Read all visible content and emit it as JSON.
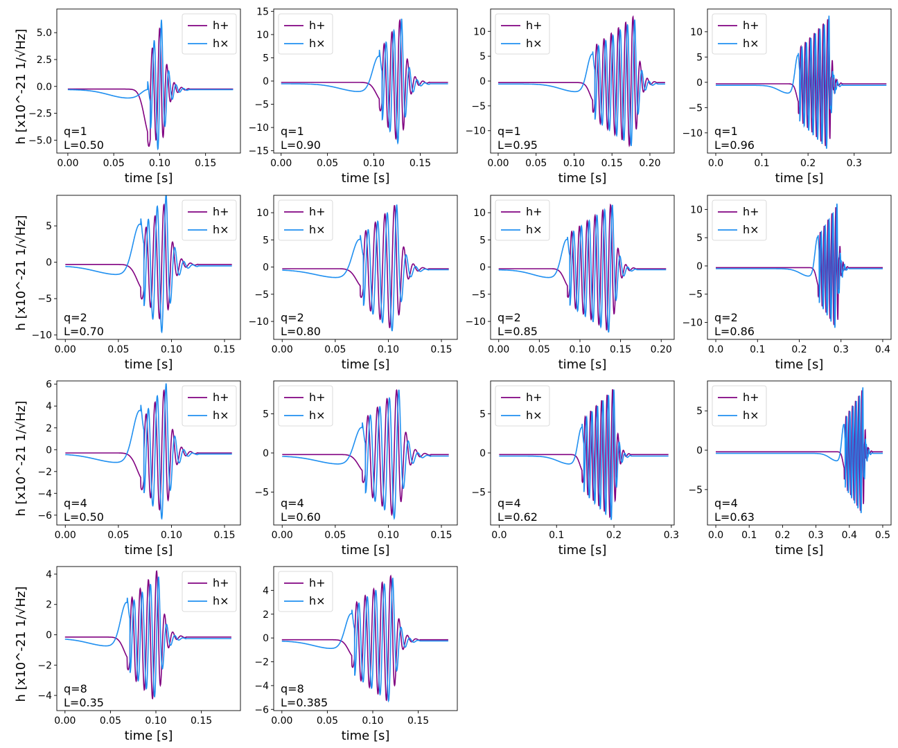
{
  "colors": {
    "h_plus": "#800080",
    "h_cross": "#1f8ff0"
  },
  "legend": {
    "plus": "h+",
    "cross": "h×",
    "placement": "top-left"
  },
  "x_label": "time [s]",
  "y_label": "h [x10^-21 1/√Hz]",
  "chart_data": [
    {
      "type": "line",
      "row": 0,
      "col": 0,
      "q_text": "q=1",
      "L_text": "L=0.50",
      "legend_loc": "top-right",
      "xlim": [
        -0.012,
        0.188
      ],
      "ylim": [
        -6.2,
        7.2
      ],
      "xticks": [
        0.0,
        0.05,
        0.1,
        0.15
      ],
      "xtick_labels": [
        "0.00",
        "0.05",
        "0.10",
        "0.15"
      ],
      "yticks": [
        -5.0,
        -2.5,
        0.0,
        2.5,
        5.0
      ],
      "ytick_labels": [
        "−5.0",
        "−2.5",
        "0.0",
        "2.5",
        "5.0"
      ],
      "t_end": 0.18,
      "t_merger": 0.102,
      "n_cycles": 1,
      "amp_plus": 6.1,
      "amp_cross": 6.5,
      "amp_lobe_plus": 4.5,
      "amp_lobe_cross": 0.5,
      "lobe_shift": 0.0,
      "offset_plus": -0.25,
      "offset_cross": -0.3,
      "spike": false
    },
    {
      "type": "line",
      "row": 0,
      "col": 1,
      "q_text": "q=1",
      "L_text": "L=0.90",
      "legend_loc": "top-left",
      "xlim": [
        -0.008,
        0.19
      ],
      "ylim": [
        -15.5,
        15.5
      ],
      "xticks": [
        0.0,
        0.05,
        0.1,
        0.15
      ],
      "xtick_labels": [
        "0.00",
        "0.05",
        "0.10",
        "0.15"
      ],
      "yticks": [
        -15,
        -10,
        -5,
        0,
        5,
        10,
        15
      ],
      "ytick_labels": [
        "−15",
        "−10",
        "−5",
        "0",
        "5",
        "10",
        "15"
      ],
      "t_end": 0.18,
      "t_merger": 0.13,
      "n_cycles": 2,
      "amp_plus": 14,
      "amp_cross": 14,
      "amp_lobe_plus": 4,
      "amp_lobe_cross": 7,
      "lobe_shift": 0.0,
      "offset_plus": -0.3,
      "offset_cross": -0.6,
      "spike": false
    },
    {
      "type": "line",
      "row": 0,
      "col": 2,
      "q_text": "q=1",
      "L_text": "L=0.95",
      "legend_loc": "top-left",
      "xlim": [
        -0.01,
        0.232
      ],
      "ylim": [
        -14.5,
        14.5
      ],
      "xticks": [
        0.0,
        0.05,
        0.1,
        0.15,
        0.2
      ],
      "xtick_labels": [
        "0.00",
        "0.05",
        "0.10",
        "0.15",
        "0.20"
      ],
      "yticks": [
        -10,
        -5,
        0,
        5,
        10
      ],
      "ytick_labels": [
        "−10",
        "−5",
        "0",
        "5",
        "10"
      ],
      "t_end": 0.22,
      "t_merger": 0.18,
      "n_cycles": 5,
      "amp_plus": 13.5,
      "amp_cross": 13,
      "amp_lobe_plus": 4,
      "amp_lobe_cross": 7,
      "lobe_shift": 0.0,
      "offset_plus": -0.3,
      "offset_cross": -0.6,
      "spike": false
    },
    {
      "type": "line",
      "row": 0,
      "col": 3,
      "q_text": "q=1",
      "L_text": "L=0.96",
      "legend_loc": "top-left",
      "xlim": [
        -0.018,
        0.38
      ],
      "ylim": [
        -14,
        14.5
      ],
      "xticks": [
        0.0,
        0.1,
        0.2,
        0.3
      ],
      "xtick_labels": [
        "0.0",
        "0.1",
        "0.2",
        "0.3"
      ],
      "yticks": [
        -10,
        -5,
        0,
        5,
        10
      ],
      "ytick_labels": [
        "−10",
        "−5",
        "0",
        "5",
        "10"
      ],
      "t_end": 0.37,
      "t_merger": 0.245,
      "n_cycles": 6,
      "amp_plus": 13,
      "amp_cross": 13,
      "amp_lobe_plus": 4,
      "amp_lobe_cross": 7,
      "lobe_shift": 0.0,
      "offset_plus": -0.3,
      "offset_cross": -0.6,
      "spike": true
    },
    {
      "type": "line",
      "row": 1,
      "col": 0,
      "q_text": "q=2",
      "L_text": "L=0.70",
      "legend_loc": "top-right",
      "xlim": [
        -0.008,
        0.165
      ],
      "ylim": [
        -10.6,
        9.2
      ],
      "xticks": [
        0.0,
        0.05,
        0.1,
        0.15
      ],
      "xtick_labels": [
        "0.00",
        "0.05",
        "0.10",
        "0.15"
      ],
      "yticks": [
        -10,
        -5,
        0,
        5
      ],
      "ytick_labels": [
        "−10",
        "−5",
        "0",
        "5"
      ],
      "t_end": 0.157,
      "t_merger": 0.095,
      "n_cycles": 2,
      "amp_plus": 8.6,
      "amp_cross": 10,
      "amp_lobe_plus": 3.5,
      "amp_lobe_cross": 6.5,
      "lobe_shift": 0.0,
      "offset_plus": -0.3,
      "offset_cross": -0.5,
      "spike": false
    },
    {
      "type": "line",
      "row": 1,
      "col": 1,
      "q_text": "q=2",
      "L_text": "L=0.80",
      "legend_loc": "top-left",
      "xlim": [
        -0.008,
        0.165
      ],
      "ylim": [
        -13.3,
        13.2
      ],
      "xticks": [
        0.0,
        0.05,
        0.1,
        0.15
      ],
      "xtick_labels": [
        "0.00",
        "0.05",
        "0.10",
        "0.15"
      ],
      "yticks": [
        -10,
        -5,
        0,
        5,
        10
      ],
      "ytick_labels": [
        "−10",
        "−5",
        "0",
        "5",
        "10"
      ],
      "t_end": 0.157,
      "t_merger": 0.108,
      "n_cycles": 3,
      "amp_plus": 12,
      "amp_cross": 12,
      "amp_lobe_plus": 3.5,
      "amp_lobe_cross": 6.5,
      "lobe_shift": 0.0,
      "offset_plus": -0.3,
      "offset_cross": -0.5,
      "spike": false
    },
    {
      "type": "line",
      "row": 1,
      "col": 2,
      "q_text": "q=2",
      "L_text": "L=0.85",
      "legend_loc": "top-left",
      "xlim": [
        -0.01,
        0.216
      ],
      "ylim": [
        -13.3,
        13.2
      ],
      "xticks": [
        0.0,
        0.05,
        0.1,
        0.15,
        0.2
      ],
      "xtick_labels": [
        "0.00",
        "0.05",
        "0.10",
        "0.15",
        "0.20"
      ],
      "yticks": [
        -10,
        -5,
        0,
        5,
        10
      ],
      "ytick_labels": [
        "−10",
        "−5",
        "0",
        "5",
        "10"
      ],
      "t_end": 0.206,
      "t_merger": 0.14,
      "n_cycles": 5,
      "amp_plus": 12,
      "amp_cross": 12,
      "amp_lobe_plus": 3.5,
      "amp_lobe_cross": 6.5,
      "lobe_shift": 0.0,
      "offset_plus": -0.3,
      "offset_cross": -0.5,
      "spike": false
    },
    {
      "type": "line",
      "row": 1,
      "col": 3,
      "q_text": "q=2",
      "L_text": "L=0.86",
      "legend_loc": "top-left",
      "xlim": [
        -0.02,
        0.42
      ],
      "ylim": [
        -13,
        12.5
      ],
      "xticks": [
        0.0,
        0.1,
        0.2,
        0.3,
        0.4
      ],
      "xtick_labels": [
        "0.0",
        "0.1",
        "0.2",
        "0.3",
        "0.4"
      ],
      "yticks": [
        -10,
        -5,
        0,
        5,
        10
      ],
      "ytick_labels": [
        "−10",
        "−5",
        "0",
        "5",
        "10"
      ],
      "t_end": 0.4,
      "t_merger": 0.29,
      "n_cycles": 4,
      "amp_plus": 11,
      "amp_cross": 11,
      "amp_lobe_plus": 3.5,
      "amp_lobe_cross": 6.5,
      "lobe_shift": 0.0,
      "offset_plus": -0.3,
      "offset_cross": -0.5,
      "spike": true
    },
    {
      "type": "line",
      "row": 2,
      "col": 0,
      "q_text": "q=4",
      "L_text": "L=0.50",
      "legend_loc": "top-right",
      "xlim": [
        -0.008,
        0.165
      ],
      "ylim": [
        -6.9,
        6.3
      ],
      "xticks": [
        0.0,
        0.05,
        0.1,
        0.15
      ],
      "xtick_labels": [
        "0.00",
        "0.05",
        "0.10",
        "0.15"
      ],
      "yticks": [
        -6,
        -4,
        -2,
        0,
        2,
        4,
        6
      ],
      "ytick_labels": [
        "−6",
        "−4",
        "−2",
        "0",
        "2",
        "4",
        "6"
      ],
      "t_end": 0.157,
      "t_merger": 0.095,
      "n_cycles": 2,
      "amp_plus": 6,
      "amp_cross": 6.5,
      "amp_lobe_plus": 2.5,
      "amp_lobe_cross": 4.5,
      "lobe_shift": 0.0,
      "offset_plus": -0.3,
      "offset_cross": -0.4,
      "spike": false
    },
    {
      "type": "line",
      "row": 2,
      "col": 1,
      "q_text": "q=4",
      "L_text": "L=0.60",
      "legend_loc": "top-left",
      "xlim": [
        -0.008,
        0.165
      ],
      "ylim": [
        -9.2,
        9.2
      ],
      "xticks": [
        0.0,
        0.05,
        0.1,
        0.15
      ],
      "xtick_labels": [
        "0.00",
        "0.05",
        "0.10",
        "0.15"
      ],
      "yticks": [
        -5,
        0,
        5
      ],
      "ytick_labels": [
        "−5",
        "0",
        "5"
      ],
      "t_end": 0.157,
      "t_merger": 0.11,
      "n_cycles": 3,
      "amp_plus": 8.5,
      "amp_cross": 8.5,
      "amp_lobe_plus": 2.3,
      "amp_lobe_cross": 4.3,
      "lobe_shift": 0.0,
      "offset_plus": -0.2,
      "offset_cross": -0.4,
      "spike": false
    },
    {
      "type": "line",
      "row": 2,
      "col": 2,
      "q_text": "q=4",
      "L_text": "L=0.62",
      "legend_loc": "top-left",
      "xlim": [
        -0.015,
        0.305
      ],
      "ylim": [
        -9.2,
        9.2
      ],
      "xticks": [
        0.0,
        0.1,
        0.2,
        0.3
      ],
      "xtick_labels": [
        "0.0",
        "0.1",
        "0.2",
        "0.3"
      ],
      "yticks": [
        -5,
        0,
        5
      ],
      "ytick_labels": [
        "−5",
        "0",
        "5"
      ],
      "t_end": 0.295,
      "t_merger": 0.2,
      "n_cycles": 5,
      "amp_plus": 8.5,
      "amp_cross": 8.5,
      "amp_lobe_plus": 2.3,
      "amp_lobe_cross": 4.3,
      "lobe_shift": 0.0,
      "offset_plus": -0.2,
      "offset_cross": -0.4,
      "spike": false
    },
    {
      "type": "line",
      "row": 2,
      "col": 3,
      "q_text": "q=4",
      "L_text": "L=0.63",
      "legend_loc": "top-left",
      "xlim": [
        -0.025,
        0.525
      ],
      "ylim": [
        -9.5,
        8.8
      ],
      "xticks": [
        0.0,
        0.1,
        0.2,
        0.3,
        0.4,
        0.5
      ],
      "xtick_labels": [
        "0.0",
        "0.1",
        "0.2",
        "0.3",
        "0.4",
        "0.5"
      ],
      "yticks": [
        -5,
        0,
        5
      ],
      "ytick_labels": [
        "−5",
        "0",
        "5"
      ],
      "t_end": 0.5,
      "t_merger": 0.44,
      "n_cycles": 5,
      "amp_plus": 8,
      "amp_cross": 8,
      "amp_lobe_plus": 2.3,
      "amp_lobe_cross": 4.3,
      "lobe_shift": 0.0,
      "offset_plus": -0.2,
      "offset_cross": -0.4,
      "spike": true
    },
    {
      "type": "line",
      "row": 3,
      "col": 0,
      "q_text": "q=8",
      "L_text": "L=0.35",
      "legend_loc": "top-right",
      "xlim": [
        -0.009,
        0.193
      ],
      "ylim": [
        -5.0,
        4.5
      ],
      "xticks": [
        0.0,
        0.05,
        0.1,
        0.15
      ],
      "xtick_labels": [
        "0.00",
        "0.05",
        "0.10",
        "0.15"
      ],
      "yticks": [
        -4,
        -2,
        0,
        2,
        4
      ],
      "ytick_labels": [
        "−4",
        "−2",
        "0",
        "2",
        "4"
      ],
      "t_end": 0.183,
      "t_merger": 0.103,
      "n_cycles": 3,
      "amp_plus": 4.5,
      "amp_cross": 4.1,
      "amp_lobe_plus": 1.5,
      "amp_lobe_cross": 2.7,
      "lobe_shift": 0.0,
      "offset_plus": -0.15,
      "offset_cross": -0.25,
      "spike": false
    },
    {
      "type": "line",
      "row": 3,
      "col": 1,
      "q_text": "q=8",
      "L_text": "L=0.385",
      "legend_loc": "top-left",
      "xlim": [
        -0.009,
        0.193
      ],
      "ylim": [
        -6.1,
        6.0
      ],
      "xticks": [
        0.0,
        0.05,
        0.1,
        0.15
      ],
      "xtick_labels": [
        "0.00",
        "0.05",
        "0.10",
        "0.15"
      ],
      "yticks": [
        -6,
        -4,
        -2,
        0,
        2,
        4
      ],
      "ytick_labels": [
        "−6",
        "−4",
        "−2",
        "0",
        "2",
        "4"
      ],
      "t_end": 0.183,
      "t_merger": 0.122,
      "n_cycles": 4,
      "amp_plus": 5.5,
      "amp_cross": 5.3,
      "amp_lobe_plus": 1.5,
      "amp_lobe_cross": 2.7,
      "lobe_shift": 0.0,
      "offset_plus": -0.15,
      "offset_cross": -0.25,
      "spike": false
    }
  ]
}
